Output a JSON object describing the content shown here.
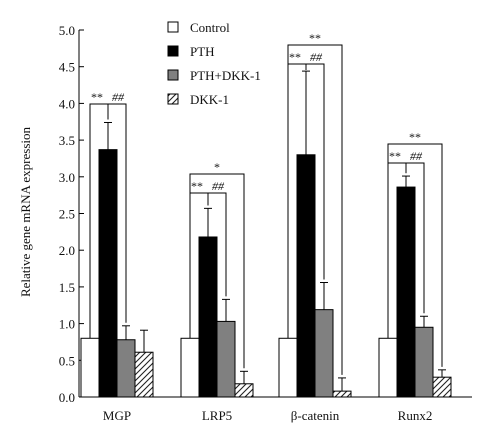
{
  "chart_data": {
    "type": "bar",
    "title": "",
    "xlabel": "",
    "ylabel": "Relative gene mRNA expression",
    "ylim": [
      0,
      5.0
    ],
    "ytick_labels": [
      "0.0",
      "0.5",
      "1.0",
      "1.5",
      "2.0",
      "2.5",
      "3.0",
      "3.5",
      "4.0",
      "4.5",
      "5.0"
    ],
    "categories": [
      "MGP",
      "LRP5",
      "β-catenin",
      "Runx2"
    ],
    "series": [
      {
        "name": "Control",
        "pattern": "white",
        "values": [
          0.8,
          0.8,
          0.8,
          0.8
        ],
        "errors": [
          0,
          0,
          0,
          0
        ]
      },
      {
        "name": "PTH",
        "pattern": "black",
        "values": [
          3.37,
          2.18,
          3.3,
          2.86
        ],
        "errors": [
          0.37,
          0.39,
          1.14,
          0.15
        ]
      },
      {
        "name": "PTH+DKK-1",
        "pattern": "gray",
        "values": [
          0.78,
          1.03,
          1.19,
          0.95
        ],
        "errors": [
          0.19,
          0.3,
          0.37,
          0.15
        ]
      },
      {
        "name": "DKK-1",
        "pattern": "hatch",
        "values": [
          0.61,
          0.18,
          0.08,
          0.27
        ],
        "errors": [
          0.3,
          0.17,
          0.18,
          0.1
        ]
      }
    ],
    "legend_position": "top-center",
    "grid": false,
    "annotations": [
      {
        "category": "MGP",
        "label": "**",
        "from_series": "Control",
        "to_series": "PTH"
      },
      {
        "category": "MGP",
        "label": "##",
        "from_series": "PTH",
        "to_series": "PTH+DKK-1"
      },
      {
        "category": "LRP5",
        "label": "*",
        "from_series": "Control",
        "to_series": "DKK-1"
      },
      {
        "category": "LRP5",
        "label": "**",
        "from_series": "Control",
        "to_series": "PTH"
      },
      {
        "category": "LRP5",
        "label": "##",
        "from_series": "PTH",
        "to_series": "PTH+DKK-1"
      },
      {
        "category": "β-catenin",
        "label": "**",
        "from_series": "Control",
        "to_series": "DKK-1"
      },
      {
        "category": "β-catenin",
        "label": "**",
        "from_series": "Control",
        "to_series": "PTH"
      },
      {
        "category": "β-catenin",
        "label": "##",
        "from_series": "PTH",
        "to_series": "PTH+DKK-1"
      },
      {
        "category": "Runx2",
        "label": "**",
        "from_series": "Control",
        "to_series": "DKK-1"
      },
      {
        "category": "Runx2",
        "label": "**",
        "from_series": "Control",
        "to_series": "PTH"
      },
      {
        "category": "Runx2",
        "label": "##",
        "from_series": "PTH",
        "to_series": "PTH+DKK-1"
      }
    ]
  }
}
